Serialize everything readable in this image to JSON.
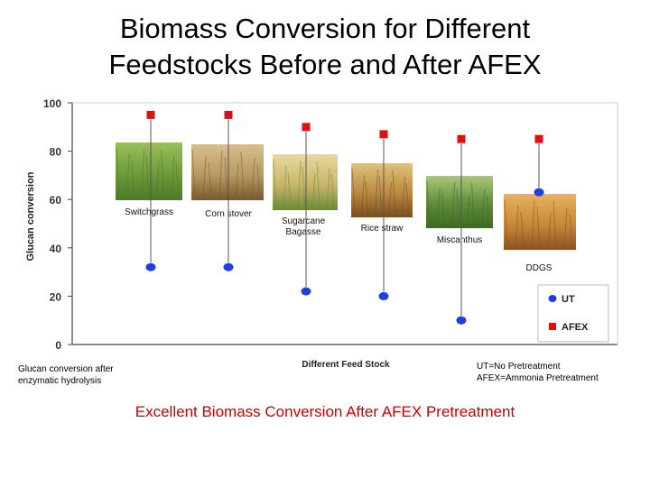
{
  "title_line1": "Biomass Conversion for Different",
  "title_line2": "Feedstocks Before and After AFEX",
  "note_left_line1": "Glucan conversion after",
  "note_left_line2": "enzymatic hydrolysis",
  "note_right_line1": "UT=No Pretreatment",
  "note_right_line2": "AFEX=Ammonia Pretreatment",
  "footer": "Excellent Biomass Conversion After AFEX Pretreatment",
  "colors": {
    "ut": "#1f3fe0",
    "afex": "#dd1111",
    "axis": "#444444",
    "grid": "#cccccc"
  },
  "chart_data": {
    "type": "scatter",
    "title": "",
    "xlabel": "Different Feed Stock",
    "ylabel": "Glucan conversion",
    "ylim": [
      0,
      100
    ],
    "yticks": [
      0,
      20,
      40,
      60,
      80,
      100
    ],
    "grid": false,
    "legend_position": "bottom-right",
    "categories": [
      {
        "label": [
          "Switchgrass"
        ],
        "image": "switchgrass-photo"
      },
      {
        "label": [
          "Corn stover"
        ],
        "image": "corn-stover-photo"
      },
      {
        "label": [
          "Sugarcane",
          "Bagasse"
        ],
        "image": "sugarcane-bagasse-photo"
      },
      {
        "label": [
          "Rice straw"
        ],
        "image": "rice-straw-photo"
      },
      {
        "label": [
          "Miscanthus"
        ],
        "image": "miscanthus-photo"
      },
      {
        "label": [
          "DDGS"
        ],
        "image": "ddgs-photo"
      }
    ],
    "series": [
      {
        "name": "UT",
        "marker": "circle",
        "color": "#1f3fe0",
        "values": [
          32,
          32,
          22,
          20,
          10,
          63
        ]
      },
      {
        "name": "AFEX",
        "marker": "square",
        "color": "#dd1111",
        "values": [
          95,
          95,
          90,
          87,
          85,
          85
        ]
      }
    ]
  }
}
